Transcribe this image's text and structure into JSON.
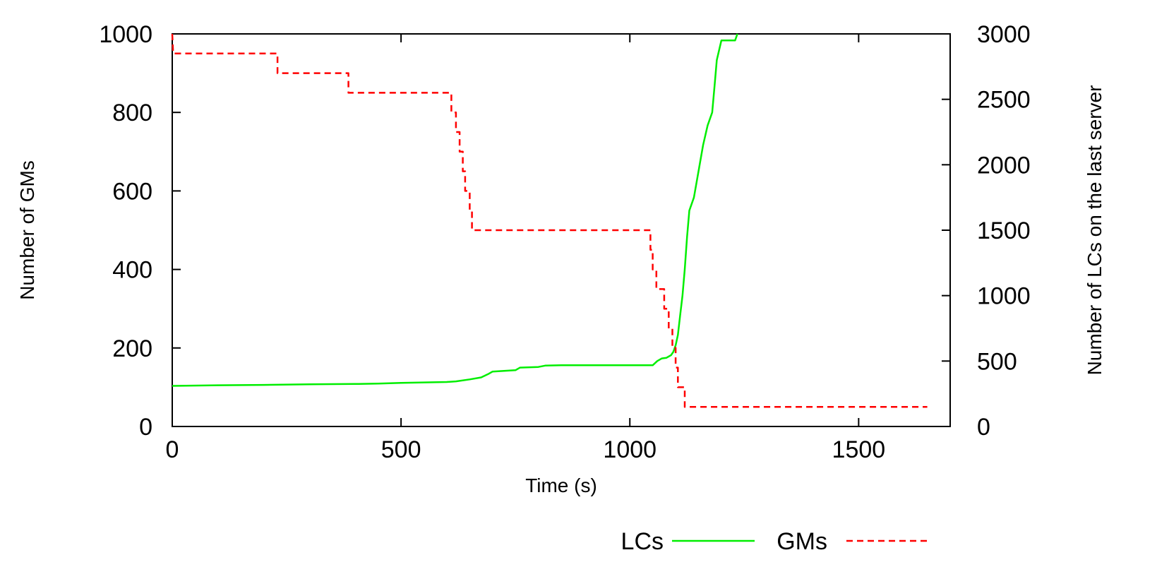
{
  "chart_data": {
    "type": "line",
    "xlabel": "Time (s)",
    "ylabel": "Number of GMs",
    "y2label": "Number of LCs on the last server",
    "xlim": [
      0,
      1700
    ],
    "ylim": [
      0,
      1000
    ],
    "y2lim": [
      0,
      3000
    ],
    "xticks": [
      "0",
      "500",
      "1000",
      "1500"
    ],
    "yticks": [
      "0",
      "200",
      "400",
      "600",
      "800",
      "1000"
    ],
    "y2ticks": [
      "0",
      "500",
      "1000",
      "1500",
      "2000",
      "2500",
      "3000"
    ],
    "grid": false,
    "legend_position": "bottom-right",
    "series": [
      {
        "name": "LCs",
        "axis": "right",
        "color": "#00ee00",
        "dash": "solid",
        "points": [
          [
            0,
            310
          ],
          [
            100,
            315
          ],
          [
            200,
            318
          ],
          [
            300,
            322
          ],
          [
            400,
            325
          ],
          [
            450,
            328
          ],
          [
            500,
            333
          ],
          [
            600,
            340
          ],
          [
            620,
            345
          ],
          [
            650,
            360
          ],
          [
            675,
            375
          ],
          [
            690,
            400
          ],
          [
            700,
            420
          ],
          [
            750,
            430
          ],
          [
            760,
            450
          ],
          [
            800,
            455
          ],
          [
            815,
            465
          ],
          [
            850,
            468
          ],
          [
            900,
            468
          ],
          [
            950,
            468
          ],
          [
            1000,
            468
          ],
          [
            1050,
            468
          ],
          [
            1060,
            500
          ],
          [
            1070,
            520
          ],
          [
            1080,
            525
          ],
          [
            1090,
            545
          ],
          [
            1095,
            570
          ],
          [
            1100,
            620
          ],
          [
            1105,
            700
          ],
          [
            1110,
            850
          ],
          [
            1115,
            1000
          ],
          [
            1120,
            1200
          ],
          [
            1125,
            1450
          ],
          [
            1130,
            1650
          ],
          [
            1140,
            1750
          ],
          [
            1150,
            1950
          ],
          [
            1160,
            2150
          ],
          [
            1170,
            2300
          ],
          [
            1180,
            2400
          ],
          [
            1185,
            2600
          ],
          [
            1190,
            2800
          ],
          [
            1200,
            2950
          ],
          [
            1210,
            2950
          ],
          [
            1230,
            2950
          ],
          [
            1235,
            3000
          ]
        ]
      },
      {
        "name": "GMs",
        "axis": "left",
        "color": "#ff0000",
        "dash": "dashed",
        "points": [
          [
            0,
            1000
          ],
          [
            2,
            950
          ],
          [
            230,
            950
          ],
          [
            230,
            900
          ],
          [
            385,
            900
          ],
          [
            385,
            850
          ],
          [
            610,
            850
          ],
          [
            610,
            800
          ],
          [
            620,
            800
          ],
          [
            620,
            750
          ],
          [
            628,
            750
          ],
          [
            628,
            700
          ],
          [
            635,
            700
          ],
          [
            635,
            650
          ],
          [
            640,
            650
          ],
          [
            640,
            600
          ],
          [
            650,
            600
          ],
          [
            650,
            550
          ],
          [
            655,
            550
          ],
          [
            655,
            500
          ],
          [
            1045,
            500
          ],
          [
            1045,
            450
          ],
          [
            1050,
            450
          ],
          [
            1050,
            400
          ],
          [
            1058,
            400
          ],
          [
            1058,
            350
          ],
          [
            1075,
            350
          ],
          [
            1075,
            300
          ],
          [
            1085,
            300
          ],
          [
            1085,
            250
          ],
          [
            1093,
            250
          ],
          [
            1093,
            200
          ],
          [
            1100,
            200
          ],
          [
            1100,
            150
          ],
          [
            1105,
            150
          ],
          [
            1105,
            100
          ],
          [
            1120,
            100
          ],
          [
            1120,
            50
          ],
          [
            1650,
            50
          ]
        ]
      }
    ]
  }
}
